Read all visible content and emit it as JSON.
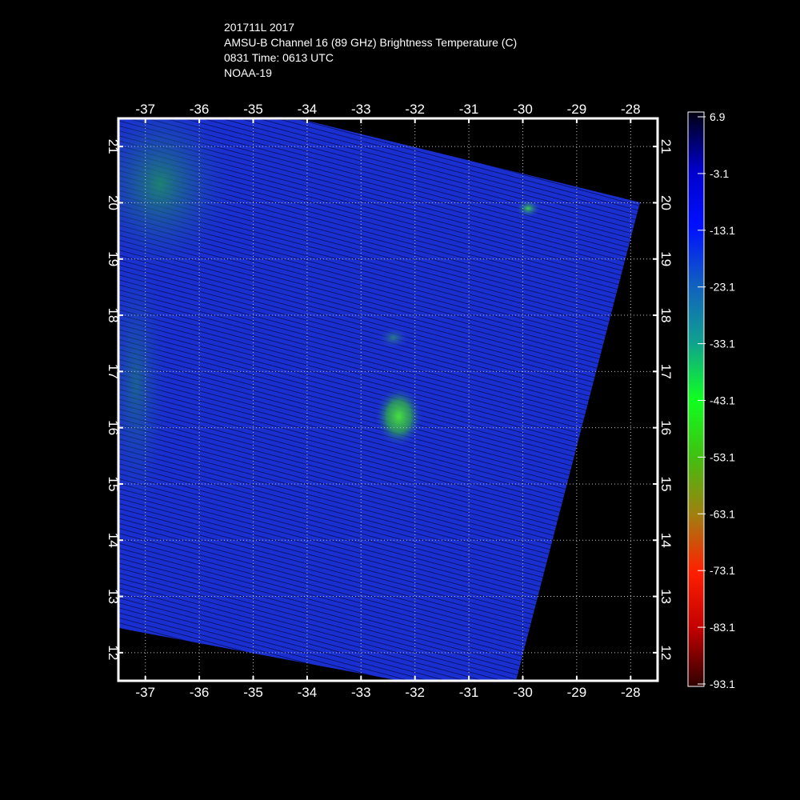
{
  "header": {
    "lines": [
      "201711L 2017",
      "AMSU-B Channel 16 (89 GHz) Brightness Temperature (C)",
      "0831 Time: 0613 UTC",
      "NOAA-19"
    ]
  },
  "map": {
    "lon_ticks": [
      "-37",
      "-36",
      "-35",
      "-34",
      "-33",
      "-32",
      "-31",
      "-30",
      "-29",
      "-28"
    ],
    "lat_ticks": [
      "12",
      "13",
      "14",
      "15",
      "16",
      "17",
      "18",
      "19",
      "20",
      "21"
    ],
    "lon_range": [
      -37.5,
      -27.5
    ],
    "lat_range": [
      11.5,
      21.5
    ],
    "swath_color": "#1a2fd0",
    "features": [
      {
        "name": "storm-core",
        "lon": -32.3,
        "lat": 16.2,
        "color": "#3fdc3a"
      },
      {
        "name": "cold-spot",
        "lon": -29.9,
        "lat": 19.9,
        "color": "#3ecb4a"
      },
      {
        "name": "rainband",
        "lon": -32.4,
        "lat": 17.6,
        "color": "#2a7a8a"
      }
    ]
  },
  "colorbar": {
    "labels": [
      "6.9",
      "-3.1",
      "-13.1",
      "-23.1",
      "-33.1",
      "-43.1",
      "-53.1",
      "-63.1",
      "-73.1",
      "-83.1",
      "-93.1"
    ],
    "colors": [
      "#000010",
      "#0000c8",
      "#0010ff",
      "#1060c0",
      "#10a090",
      "#10ff20",
      "#40c010",
      "#a08010",
      "#ff2000",
      "#c00000",
      "#300000"
    ]
  }
}
